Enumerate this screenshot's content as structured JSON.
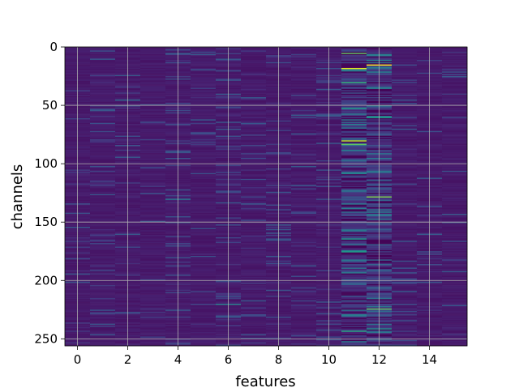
{
  "chart_data": {
    "type": "heatmap",
    "title": "",
    "xlabel": "features",
    "ylabel": "channels",
    "n_features": 16,
    "n_channels": 256,
    "x_range": [
      -0.5,
      15.5
    ],
    "y_range": [
      256,
      0
    ],
    "x_ticks": [
      0,
      2,
      4,
      6,
      8,
      10,
      12,
      14
    ],
    "y_ticks": [
      0,
      50,
      100,
      150,
      200,
      250
    ],
    "grid": true,
    "colormap": "viridis",
    "value_range": [
      0,
      1
    ],
    "background_level": 0.07,
    "column_activity": [
      0.08,
      0.12,
      0.1,
      0.06,
      0.15,
      0.08,
      0.22,
      0.12,
      0.14,
      0.15,
      0.16,
      0.85,
      0.75,
      0.15,
      0.08,
      0.06
    ],
    "hot_cells": [
      {
        "feature": 11,
        "channel": 5,
        "value": 0.75
      },
      {
        "feature": 11,
        "channel": 18,
        "value": 0.95
      },
      {
        "feature": 11,
        "channel": 30,
        "value": 0.65
      },
      {
        "feature": 11,
        "channel": 52,
        "value": 0.55
      },
      {
        "feature": 11,
        "channel": 80,
        "value": 0.9
      },
      {
        "feature": 11,
        "channel": 83,
        "value": 0.75
      },
      {
        "feature": 11,
        "channel": 164,
        "value": 0.55
      },
      {
        "feature": 11,
        "channel": 175,
        "value": 0.55
      },
      {
        "feature": 11,
        "channel": 243,
        "value": 0.6
      },
      {
        "feature": 12,
        "channel": 15,
        "value": 1.0
      },
      {
        "feature": 12,
        "channel": 60,
        "value": 0.55
      },
      {
        "feature": 12,
        "channel": 128,
        "value": 0.8
      },
      {
        "feature": 12,
        "channel": 224,
        "value": 0.75
      },
      {
        "feature": 12,
        "channel": 241,
        "value": 0.5
      },
      {
        "feature": 6,
        "channel": 220,
        "value": 0.45
      },
      {
        "feature": 4,
        "channel": 130,
        "value": 0.4
      },
      {
        "feature": 2,
        "channel": 45,
        "value": 0.35
      }
    ]
  }
}
